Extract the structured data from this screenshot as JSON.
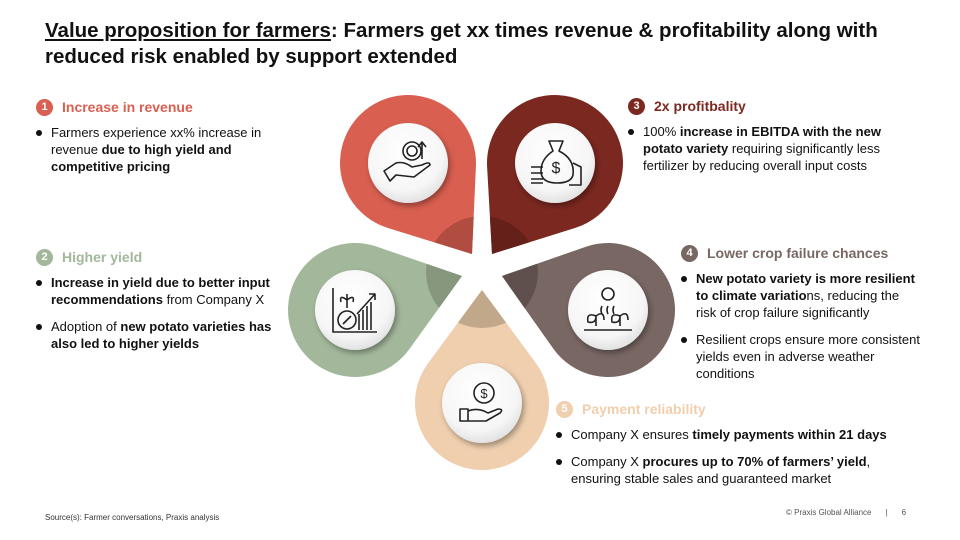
{
  "title": {
    "underlined": "Value proposition for farmers",
    "rest": ": Farmers get xx times revenue & profitability along with reduced risk enabled by support extended"
  },
  "sections": [
    {
      "num": "1",
      "title": "Increase in revenue",
      "color": "#d95f50",
      "dark": "#b14c40",
      "icon": "money-growth-hand-icon",
      "bullets": [
        [
          {
            "t": "Farmers experience xx% increase in revenue ",
            "b": false
          },
          {
            "t": "due to high yield and competitive pricing",
            "b": true
          }
        ]
      ]
    },
    {
      "num": "2",
      "title": "Higher yield",
      "color": "#a3b89b",
      "dark": "#86977e",
      "icon": "plant-growth-chart-icon",
      "bullets": [
        [
          {
            "t": "Increase in yield due to better input recommendations",
            "b": true
          },
          {
            "t": " from Company X",
            "b": false
          }
        ],
        [
          {
            "t": "Adoption of ",
            "b": false
          },
          {
            "t": "new potato varieties has also led to higher yields",
            "b": true
          }
        ]
      ]
    },
    {
      "num": "3",
      "title": "2x profitbality",
      "color": "#7b2820",
      "dark": "#65201a",
      "icon": "money-bag-icon",
      "bullets": [
        [
          {
            "t": "100% ",
            "b": false
          },
          {
            "t": "increase in EBITDA with the new potato variety",
            "b": true
          },
          {
            "t": " requiring significantly less fertilizer by reducing overall input costs",
            "b": false
          }
        ]
      ]
    },
    {
      "num": "4",
      "title": "Lower crop failure chances",
      "color": "#786763",
      "dark": "#5f504d",
      "icon": "crops-sun-icon",
      "bullets": [
        [
          {
            "t": "New potato variety is more resilient to climate variatio",
            "b": true
          },
          {
            "t": "ns, reducing the risk of crop failure significantly",
            "b": false
          }
        ],
        [
          {
            "t": "Resilient crops ensure more consistent yields even in adverse weather conditions",
            "b": false
          }
        ]
      ]
    },
    {
      "num": "5",
      "title": "Payment reliability",
      "color": "#efcfae",
      "dark": "#c2a88a",
      "icon": "secure-payment-hand-icon",
      "bullets": [
        [
          {
            "t": "Company X ensures ",
            "b": false
          },
          {
            "t": "timely payments within 21 days",
            "b": true
          }
        ],
        [
          {
            "t": "Company X ",
            "b": false
          },
          {
            "t": "procures up to 70% of farmers’ yield",
            "b": true
          },
          {
            "t": ", ensuring stable sales and guaranteed market",
            "b": false
          }
        ]
      ]
    }
  ],
  "source": "Source(s): Farmer conversations, Praxis analysis",
  "footer": {
    "copyright": "© Praxis Global Alliance",
    "separator": "|",
    "page": "6"
  }
}
